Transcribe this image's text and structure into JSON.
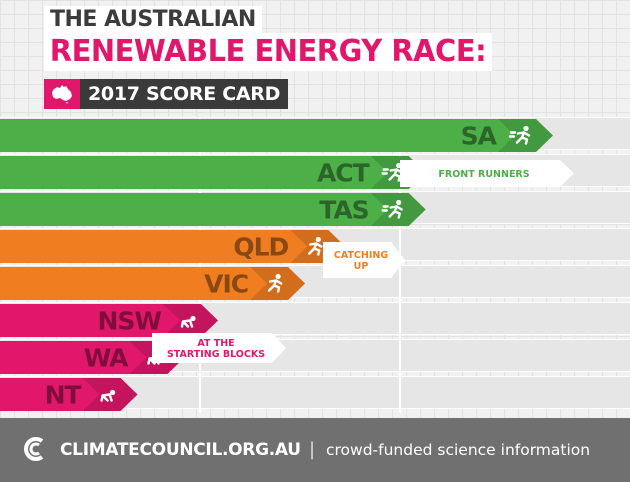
{
  "header": {
    "title_line1": "THE AUSTRALIAN",
    "title_line2": "RENEWABLE ENERGY RACE:",
    "scorecard": "2017 SCORE CARD",
    "flag_icon": "australia-map-icon"
  },
  "colors": {
    "green": "#4caf48",
    "orange": "#f07d1f",
    "pink": "#e0176a",
    "track": "#e6e6e6"
  },
  "chart_data": {
    "type": "bar",
    "orientation": "horizontal",
    "title": "THE AUSTRALIAN RENEWABLE ENERGY RACE: 2017 SCORE CARD",
    "categories": [
      "SA",
      "ACT",
      "TAS",
      "QLD",
      "VIC",
      "NSW",
      "WA",
      "NT"
    ],
    "values": [
      8,
      6.1,
      6.1,
      4.9,
      4.3,
      3,
      2.5,
      1.8
    ],
    "status": [
      "running",
      "running",
      "running",
      "jogging",
      "jogging",
      "crouch",
      "crouch",
      "crouch"
    ],
    "groups": [
      {
        "label": "FRONT RUNNERS",
        "members": [
          "SA",
          "ACT",
          "TAS"
        ],
        "color": "#4caf48"
      },
      {
        "label": "CATCHING UP",
        "members": [
          "QLD",
          "VIC"
        ],
        "color": "#f07d1f"
      },
      {
        "label": "AT THE STARTING BLOCKS",
        "members": [
          "NSW",
          "WA",
          "NT"
        ],
        "color": "#e0176a"
      }
    ],
    "xlim": [
      0,
      9.4
    ]
  },
  "footer": {
    "logo_icon": "climate-council-logo-icon",
    "site": "CLIMATECOUNCIL.ORG.AU",
    "separator": "|",
    "tagline": "crowd-funded science information"
  }
}
